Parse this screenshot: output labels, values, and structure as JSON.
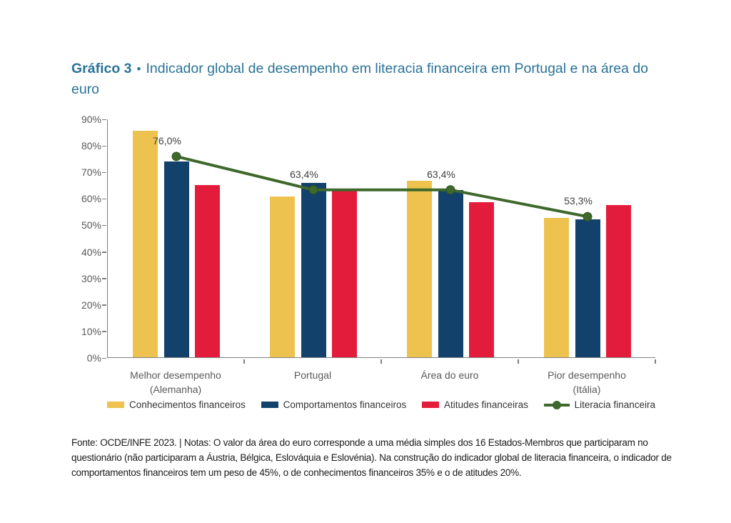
{
  "title": {
    "label": "Gráfico 3",
    "separator": "•",
    "text": "Indicador global de desempenho em literacia financeira em Portugal e na área do euro"
  },
  "chart_data": {
    "type": "bar",
    "subtype": "grouped bars with line overlay",
    "categories": [
      "Melhor desempenho\n(Alemanha)",
      "Portugal",
      "Área do euro",
      "Pior desempenho\n(Itália)"
    ],
    "series": [
      {
        "name": "Conhecimentos financeiros",
        "type": "bar",
        "color": "#EDC24F",
        "values": [
          85.5,
          60.5,
          66.5,
          52.5
        ]
      },
      {
        "name": "Comportamentos financeiros",
        "type": "bar",
        "color": "#12416B",
        "values": [
          73.8,
          65.7,
          63.0,
          52.0
        ]
      },
      {
        "name": "Atitudes financeiras",
        "type": "bar",
        "color": "#E41C3B",
        "values": [
          65.0,
          63.0,
          58.5,
          57.5
        ]
      },
      {
        "name": "Literacia financeira",
        "type": "line",
        "color": "#3F682C",
        "values": [
          76.0,
          63.4,
          63.4,
          53.3
        ],
        "labels": [
          "76,0%",
          "63,4%",
          "63,4%",
          "53,3%"
        ]
      }
    ],
    "ylabel": "",
    "xlabel": "",
    "ylim": [
      0,
      90
    ],
    "ytick_step": 10,
    "ytick_suffix": "%",
    "grid": false,
    "legend_position": "bottom"
  },
  "footer": {
    "note": "Fonte: OCDE/INFE 2023. | Notas: O valor da área do euro corresponde a uma média simples dos 16 Estados-Membros que participaram no questionário (não participaram a Áustria, Bélgica, Eslováquia e Eslovénia). Na construção do indicador global de literacia financeira, o indicador de comportamentos financeiros tem um peso de 45%, o de conhecimentos financeiros 35% e o de atitudes 20%."
  }
}
